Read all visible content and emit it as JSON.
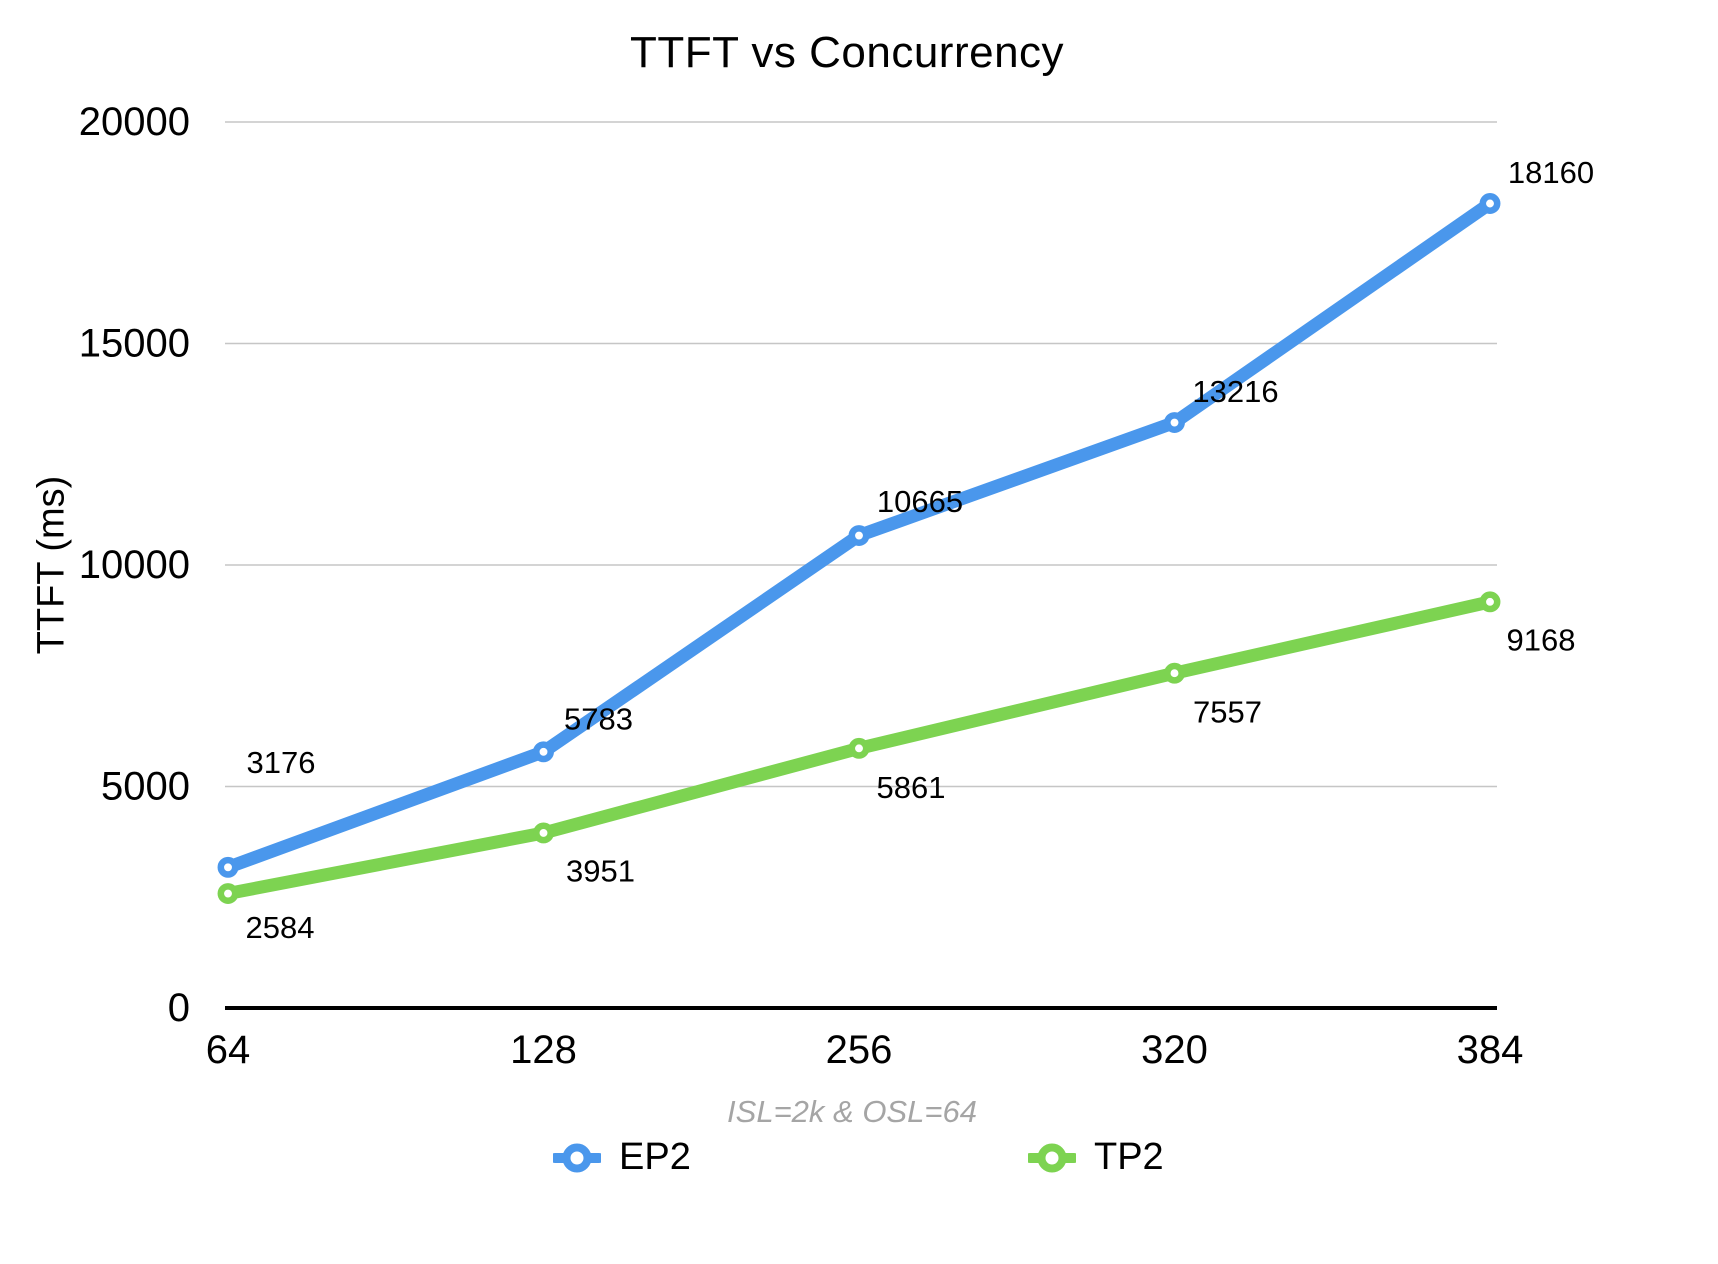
{
  "chart_data": {
    "type": "line",
    "title": "TTFT vs Concurrency",
    "subtitle": "ISL=2k & OSL=64",
    "ylabel": "TTFT (ms)",
    "xlabel": "",
    "categories": [
      "64",
      "128",
      "256",
      "320",
      "384"
    ],
    "series": [
      {
        "name": "EP2",
        "color": "#4A97EC",
        "values": [
          3176,
          5783,
          10665,
          13216,
          18160
        ]
      },
      {
        "name": "TP2",
        "color": "#7DD351",
        "values": [
          2584,
          3951,
          5861,
          7557,
          9168
        ]
      }
    ],
    "ylim": [
      0,
      20000
    ],
    "yticks": [
      0,
      5000,
      10000,
      15000,
      20000
    ],
    "grid": true,
    "legend_position": "bottom",
    "colors": {
      "gridline": "#C6C6C6",
      "axis": "#000000",
      "value_label_text": "#000000",
      "subtitle_text": "#A5A5A5"
    }
  }
}
